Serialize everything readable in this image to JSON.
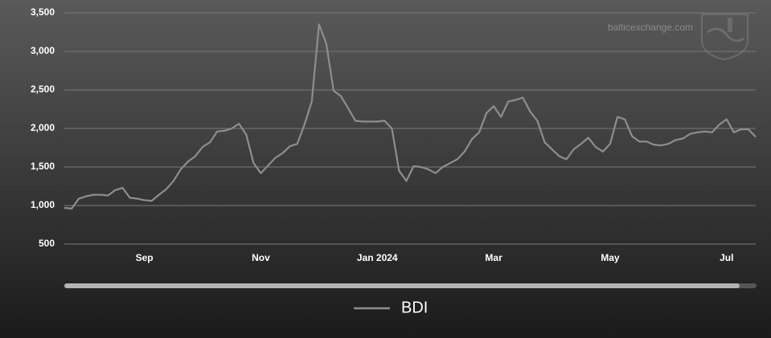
{
  "chart_data": {
    "type": "line",
    "watermark": "balticexchange.com",
    "categories": [
      null,
      null,
      null,
      null,
      null,
      null,
      null,
      null,
      null,
      null,
      null,
      "Sep",
      null,
      null,
      null,
      null,
      null,
      null,
      null,
      null,
      null,
      null,
      null,
      null,
      null,
      null,
      null,
      "Nov",
      null,
      null,
      null,
      null,
      null,
      null,
      null,
      null,
      null,
      null,
      null,
      null,
      null,
      null,
      null,
      "Jan 2024",
      null,
      null,
      null,
      null,
      null,
      null,
      null,
      null,
      null,
      null,
      null,
      null,
      null,
      null,
      null,
      "Mar",
      null,
      null,
      null,
      null,
      null,
      null,
      null,
      null,
      null,
      null,
      null,
      null,
      null,
      null,
      null,
      "May",
      null,
      null,
      null,
      null,
      null,
      null,
      null,
      null,
      null,
      null,
      null,
      null,
      null,
      null,
      null,
      "Jul",
      null,
      null,
      null,
      null
    ],
    "series": [
      {
        "name": "BDI",
        "color": "#8e8e8e",
        "values": [
          970,
          960,
          1090,
          1120,
          1140,
          1140,
          1130,
          1200,
          1230,
          1100,
          1090,
          1070,
          1060,
          1140,
          1210,
          1320,
          1470,
          1570,
          1640,
          1760,
          1820,
          1960,
          1970,
          2000,
          2060,
          1920,
          1550,
          1420,
          1520,
          1620,
          1680,
          1770,
          1800,
          2050,
          2350,
          3350,
          3100,
          2490,
          2420,
          2260,
          2100,
          2090,
          2090,
          2090,
          2100,
          2000,
          1450,
          1320,
          1510,
          1500,
          1470,
          1420,
          1500,
          1550,
          1600,
          1700,
          1860,
          1950,
          2200,
          2290,
          2150,
          2350,
          2370,
          2400,
          2220,
          2100,
          1820,
          1730,
          1640,
          1600,
          1730,
          1800,
          1880,
          1760,
          1700,
          1800,
          2150,
          2120,
          1900,
          1830,
          1830,
          1790,
          1780,
          1800,
          1850,
          1870,
          1930,
          1950,
          1960,
          1950,
          2050,
          2120,
          1950,
          1990,
          1990,
          1890
        ]
      }
    ],
    "ylim": [
      500,
      3500
    ],
    "yticks": [
      500,
      {
        "value": 1000,
        "label": "1,000"
      },
      {
        "value": 1500,
        "label": "1,500"
      },
      {
        "value": 2000,
        "label": "2,000"
      },
      {
        "value": 2500,
        "label": "2,500"
      },
      {
        "value": 3000,
        "label": "3,000"
      },
      {
        "value": 3500,
        "label": "3,500"
      }
    ],
    "grid": true
  }
}
